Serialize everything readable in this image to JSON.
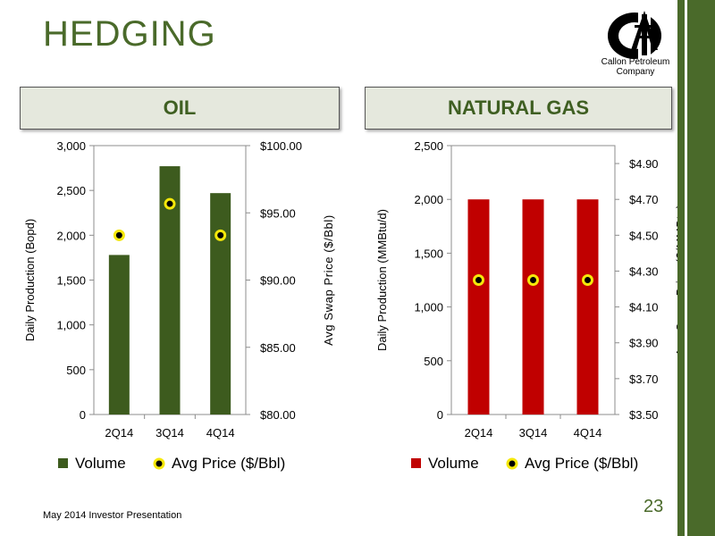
{
  "slide": {
    "title": "HEDGING",
    "footer": "May 2014 Investor Presentation",
    "page_number": "23",
    "logo_text_line1": "Callon Petroleum",
    "logo_text_line2": "Company",
    "colors": {
      "accent": "#4a6a2a",
      "oil_bar": "#3d5b1e",
      "gas_bar": "#c00000",
      "marker_fill": "#f5e80a"
    }
  },
  "sections": {
    "oil_title": "OIL",
    "gas_title": "NATURAL GAS"
  },
  "chart_data": [
    {
      "type": "bar",
      "categories": [
        "2Q14",
        "3Q14",
        "4Q14"
      ],
      "series": [
        {
          "name": "Volume",
          "values": [
            1780,
            2770,
            2470
          ],
          "axis": "left"
        },
        {
          "name": "Avg Price ($/Bbl)",
          "values": [
            93.33,
            95.67,
            93.33
          ],
          "axis": "right",
          "kind": "marker"
        }
      ],
      "ylabel": "Daily Production (Bopd)",
      "y2label": "Avg Swap Price ($/Bbl)",
      "ylim": [
        0,
        3000
      ],
      "y2lim": [
        80,
        100
      ],
      "yticks": [
        "0",
        "500",
        "1,000",
        "1,500",
        "2,000",
        "2,500",
        "3,000"
      ],
      "y2ticks": [
        "$80.00",
        "$85.00",
        "$90.00",
        "$95.00",
        "$100.00"
      ],
      "legend": "bottom",
      "grid": false
    },
    {
      "type": "bar",
      "categories": [
        "2Q14",
        "3Q14",
        "4Q14"
      ],
      "series": [
        {
          "name": "Volume",
          "values": [
            2000,
            2000,
            2000
          ],
          "axis": "left"
        },
        {
          "name": "Avg Price ($/Bbl)",
          "values": [
            4.25,
            4.25,
            4.25
          ],
          "axis": "right",
          "kind": "marker"
        }
      ],
      "ylabel": "Daily Production (MMBtu/d)",
      "y2label": "Avg Swap Price ($/MMBtu)",
      "ylim": [
        0,
        2500
      ],
      "y2lim": [
        3.5,
        5.0
      ],
      "yticks": [
        "0",
        "500",
        "1,000",
        "1,500",
        "2,000",
        "2,500"
      ],
      "y2ticks": [
        "$3.50",
        "$3.70",
        "$3.90",
        "$4.10",
        "$4.30",
        "$4.50",
        "$4.70",
        "$4.90"
      ],
      "y2tick_values": [
        3.5,
        3.7,
        3.9,
        4.1,
        4.3,
        4.5,
        4.7,
        4.9
      ],
      "legend": "bottom",
      "grid": false
    }
  ]
}
